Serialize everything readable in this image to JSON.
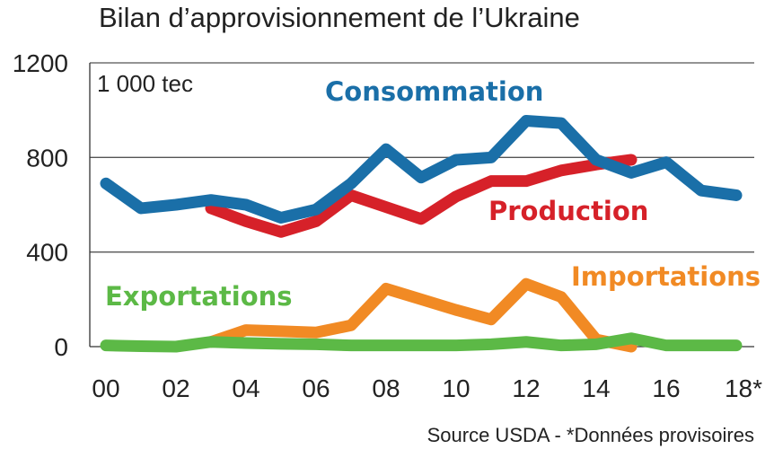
{
  "chart_data": {
    "type": "line",
    "title": "Bilan d’approvisionnement de l’Ukraine",
    "unit_label": "1 000 tec",
    "xlabel": "",
    "ylabel": "",
    "ylim": [
      0,
      1200
    ],
    "yticks": [
      0,
      400,
      800,
      1200
    ],
    "ytick_labels": [
      "0",
      "400",
      "800",
      "1200"
    ],
    "x": [
      0,
      1,
      2,
      3,
      4,
      5,
      6,
      7,
      8,
      9,
      10,
      11,
      12,
      13,
      14,
      15,
      16,
      17,
      18
    ],
    "xticks": [
      0,
      2,
      4,
      6,
      8,
      10,
      12,
      14,
      16,
      18
    ],
    "xtick_labels": [
      "00",
      "02",
      "04",
      "06",
      "08",
      "10",
      "12",
      "14",
      "16",
      "18*"
    ],
    "grid": true,
    "series": [
      {
        "name": "Consommation",
        "color": "#1a6fa8",
        "x": [
          0,
          1,
          2,
          3,
          4,
          5,
          6,
          7,
          8,
          9,
          10,
          11,
          12,
          13,
          14,
          15,
          16,
          17,
          18
        ],
        "values": [
          690,
          585,
          600,
          620,
          600,
          545,
          580,
          690,
          835,
          715,
          790,
          800,
          955,
          945,
          790,
          735,
          780,
          660,
          640
        ]
      },
      {
        "name": "Production",
        "color": "#d62129",
        "x": [
          3,
          4,
          5,
          6,
          7,
          8,
          9,
          10,
          11,
          12,
          13,
          14,
          15
        ],
        "values": [
          585,
          530,
          485,
          530,
          640,
          590,
          540,
          635,
          700,
          700,
          745,
          770,
          790
        ]
      },
      {
        "name": "Importations",
        "color": "#f18a24",
        "x": [
          3,
          4,
          5,
          6,
          7,
          8,
          9,
          10,
          11,
          12,
          13,
          14,
          15
        ],
        "values": [
          20,
          70,
          65,
          60,
          90,
          245,
          200,
          155,
          115,
          265,
          210,
          30,
          0
        ]
      },
      {
        "name": "Exportations",
        "color": "#5cb946",
        "x": [
          0,
          1,
          2,
          3,
          4,
          5,
          6,
          7,
          8,
          9,
          10,
          11,
          12,
          13,
          14,
          15,
          16,
          17,
          18
        ],
        "values": [
          5,
          2,
          0,
          20,
          15,
          12,
          10,
          5,
          5,
          5,
          5,
          10,
          20,
          5,
          10,
          35,
          5,
          5,
          5
        ]
      }
    ],
    "source": "Source USDA - *Données provisoires"
  }
}
